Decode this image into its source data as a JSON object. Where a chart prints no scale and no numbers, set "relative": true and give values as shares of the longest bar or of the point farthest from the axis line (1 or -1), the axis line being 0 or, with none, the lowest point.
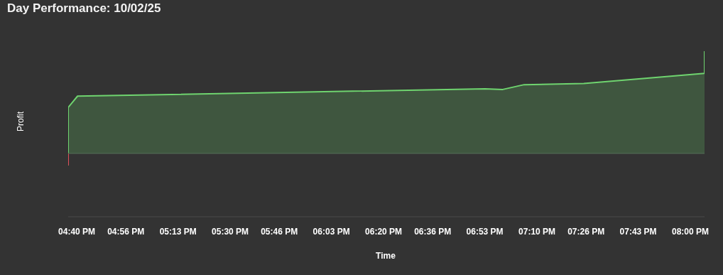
{
  "chart_data": {
    "type": "area",
    "title": "Day Performance: 10/02/25",
    "xlabel": "Time",
    "ylabel": "Profit",
    "relative": true,
    "x": [
      16.62,
      16.62,
      16.671,
      18.885,
      18.981,
      19.097,
      19.421,
      20.077,
      20.077
    ],
    "series": [
      {
        "color": "#6fd46f",
        "colors": [
          "#e0505a",
          "#6fd46f",
          "#6fd46f",
          "#6fd46f",
          "#6fd46f",
          "#6fd46f",
          "#6fd46f",
          "#6fd46f",
          "#6fd46f"
        ],
        "values": [
          -0.117,
          0.45,
          0.561,
          0.632,
          0.626,
          0.673,
          0.684,
          0.784,
          1
        ]
      }
    ],
    "xlim": [
      16.62,
      20.077
    ],
    "xticks": [
      {
        "value": 16.6667,
        "label": "04:40 PM"
      },
      {
        "value": 16.9333,
        "label": "04:56 PM"
      },
      {
        "value": 17.2167,
        "label": "05:13 PM"
      },
      {
        "value": 17.5,
        "label": "05:30 PM"
      },
      {
        "value": 17.7667,
        "label": "05:46 PM"
      },
      {
        "value": 18.05,
        "label": "06:03 PM"
      },
      {
        "value": 18.3333,
        "label": "06:20 PM"
      },
      {
        "value": 18.6,
        "label": "06:36 PM"
      },
      {
        "value": 18.8833,
        "label": "06:53 PM"
      },
      {
        "value": 19.1667,
        "label": "07:10 PM"
      },
      {
        "value": 19.4333,
        "label": "07:26 PM"
      },
      {
        "value": 19.7167,
        "label": "07:43 PM"
      },
      {
        "value": 20.0,
        "label": "08:00 PM"
      }
    ],
    "grid": false,
    "legend": false
  }
}
